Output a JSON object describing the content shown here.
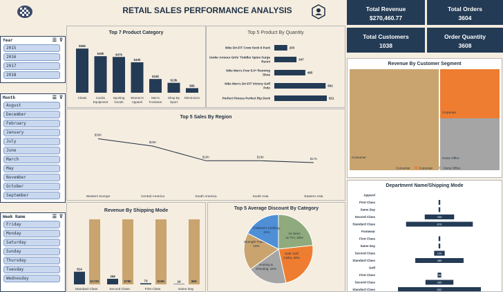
{
  "header": {
    "title": "RETAIL SALES PERFORMANCE ANALYSIS",
    "logo_icon": "checkered-flag-icon",
    "person_icon": "user-network-icon"
  },
  "kpis": [
    {
      "label": "Total Revenue",
      "value": "$270,460.77"
    },
    {
      "label": "Total Orders",
      "value": "3604"
    },
    {
      "label": "Total Customers",
      "value": "1038"
    },
    {
      "label": "Order Quantity",
      "value": "3608"
    }
  ],
  "slicers": {
    "year": {
      "title": "Year",
      "items": [
        "2015",
        "2016",
        "2017",
        "2018"
      ]
    },
    "month": {
      "title": "Month",
      "items": [
        "August",
        "December",
        "February",
        "January",
        "July",
        "June",
        "March",
        "May",
        "November",
        "October",
        "September"
      ]
    },
    "weekday": {
      "title": "Week Name",
      "items": [
        "Friday",
        "Monday",
        "Saturday",
        "Sunday",
        "Thursday",
        "Tuesday",
        "Wednesday"
      ]
    }
  },
  "chart_data": [
    {
      "id": "top7",
      "type": "bar",
      "title": "Top 7 Product Category",
      "categories": [
        "Cleats",
        "Cardio Equipment",
        "Sporting Goods",
        "Women's Apparel",
        "Men's Footwear",
        "Shop By Sport",
        "Electronics"
      ],
      "values": [
        58,
        48,
        47,
        40,
        18,
        13,
        6
      ],
      "labels": [
        "$58k",
        "$48k",
        "$47k",
        "$40k",
        "$18k",
        "$13k",
        "$6k"
      ],
      "color": "#243b55"
    },
    {
      "id": "top5qty",
      "type": "bar",
      "orientation": "horizontal",
      "title": "Top 5 Product By Quantity",
      "categories": [
        "Nike Dri-FIT Crew Sock 6 Pack",
        "Under Armour Girls' Toddler Spine Surge Runni",
        "Nike Men's Free 5.0+ Running Shoe",
        "Nike Men's Dri-FIT Victory Golf Polo",
        "Perfect Fitness Perfect Rip Deck"
      ],
      "values": [
        203,
        347,
        485,
        802,
        821
      ],
      "color": "#243b55"
    },
    {
      "id": "region",
      "type": "line",
      "title": "Top 5 Sales By Region",
      "categories": [
        "Western Europe",
        "Central America",
        "South America",
        "South Asia",
        "Eastern Asia"
      ],
      "values": [
        30,
        26,
        18,
        18,
        17
      ],
      "labels": [
        "$30K",
        "$26K",
        "$18K",
        "$18K",
        "$17K"
      ]
    },
    {
      "id": "segment",
      "type": "treemap",
      "title": "Revenue By Customer Segment",
      "items": [
        {
          "name": "Consumer",
          "color": "#c9a46f"
        },
        {
          "name": "Corporate",
          "color": "#ee7d31"
        },
        {
          "name": "Home Office",
          "color": "#a5a5a5"
        }
      ]
    },
    {
      "id": "shipping",
      "type": "bar",
      "title": "Revenue By Shipping Mode",
      "categories": [
        "Standard Class",
        "Second Class",
        "First Class",
        "Same Day"
      ],
      "series": [
        {
          "values": [
            814,
            358,
            73,
            24
          ],
          "labels": [
            "814",
            "358",
            "73",
            "24"
          ],
          "color": "#243b55"
        },
        {
          "values": [
            172,
            78,
            15,
            6
          ],
          "labels": [
            "$172K",
            "$78K",
            "$15K",
            "$6K"
          ],
          "color": "#c9a46f"
        }
      ]
    },
    {
      "id": "discount",
      "type": "pie",
      "title": "Top 5 Average Discount By Category",
      "slices": [
        {
          "label": "As Seen on TV!, 20%",
          "value": 20,
          "color": "#8faa7c"
        },
        {
          "label": "Kids' Golf Clubs, 20%",
          "value": 20,
          "color": "#ee7d31"
        },
        {
          "label": "Hunting & Shooting, 16%",
          "value": 16,
          "color": "#a5a5a5"
        },
        {
          "label": "Strength Training, 15%",
          "value": 15,
          "color": "#c9a46f"
        },
        {
          "label": "Children's Clothing, 15%",
          "value": 15,
          "color": "#4f8fd6"
        }
      ]
    },
    {
      "id": "dept",
      "type": "bar",
      "orientation": "horizontal",
      "title": "Department Name/Shipping Mode",
      "rows": [
        {
          "label": "Apparel",
          "group": true
        },
        {
          "label": "First Class",
          "value": 0,
          "text": ""
        },
        {
          "label": "Same Day",
          "value": 0,
          "text": ""
        },
        {
          "label": "Second Class",
          "value": 295,
          "text": "295"
        },
        {
          "label": "Standard Class",
          "value": 670,
          "text": "670"
        },
        {
          "label": "Footwear",
          "group": true
        },
        {
          "label": "First Class",
          "value": 0,
          "text": ""
        },
        {
          "label": "Same Day",
          "value": 0,
          "text": ""
        },
        {
          "label": "Second Class",
          "value": 106,
          "text": "106"
        },
        {
          "label": "Standard Class",
          "value": 485,
          "text": "485"
        },
        {
          "label": "Golf",
          "group": true
        },
        {
          "label": "First Class",
          "value": 36,
          "text": "36"
        },
        {
          "label": "Second Class",
          "value": 280,
          "text": "280"
        },
        {
          "label": "Standard Class",
          "value": 832,
          "text": "832"
        }
      ]
    }
  ]
}
